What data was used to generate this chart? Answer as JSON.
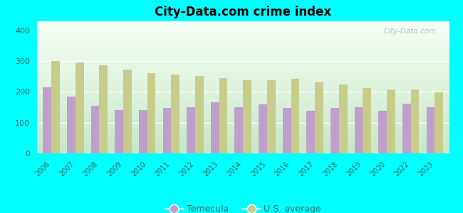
{
  "title": "City-Data.com crime index",
  "years": [
    "2006",
    "2007",
    "2008",
    "2009",
    "2010",
    "2011",
    "2012",
    "2013",
    "2014",
    "2015",
    "2016",
    "2017",
    "2018",
    "2019",
    "2020",
    "2022",
    "2023"
  ],
  "temecula": [
    214,
    185,
    155,
    140,
    142,
    148,
    150,
    167,
    151,
    160,
    148,
    138,
    148,
    150,
    138,
    162,
    150
  ],
  "us_average": [
    300,
    297,
    287,
    272,
    262,
    256,
    253,
    245,
    237,
    238,
    242,
    232,
    225,
    213,
    208,
    207,
    198
  ],
  "temecula_color": "#bf9fcc",
  "us_average_color": "#c8cc8a",
  "figure_bg_color": "#00FFFF",
  "plot_bg_top": "#e8f5e8",
  "plot_bg_bottom": "#d0ecd0",
  "ylabel_vals": [
    0,
    100,
    200,
    300,
    400
  ],
  "ylim": [
    0,
    430
  ],
  "bar_width": 0.35,
  "watermark": "City-Data.com",
  "legend_temecula": "Temecula",
  "legend_us": "U.S. average",
  "tick_color": "#336666",
  "title_color": "#000000"
}
